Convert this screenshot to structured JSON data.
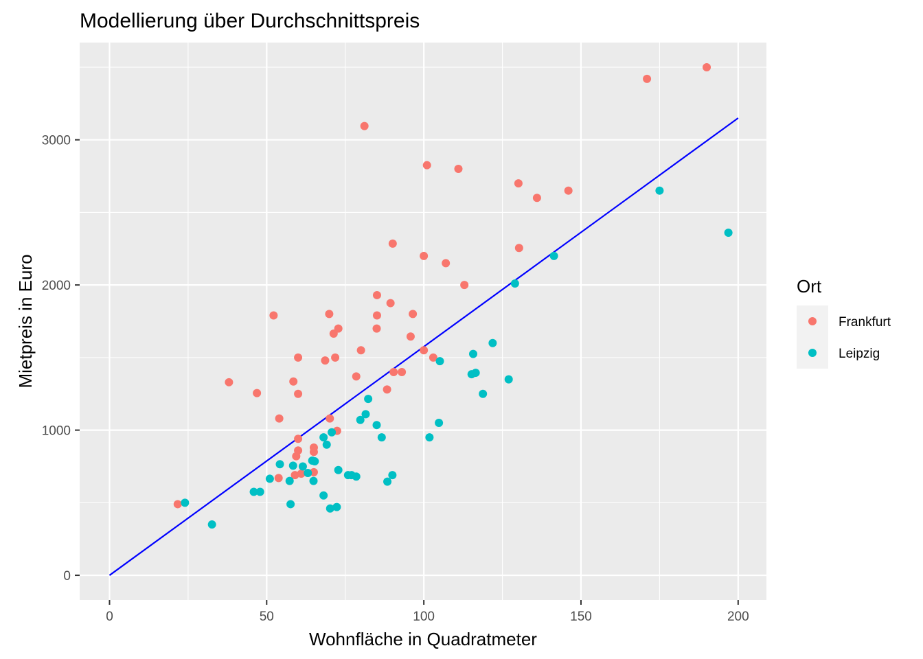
{
  "chart_data": {
    "type": "scatter",
    "title": "Modellierung über Durchschnittspreis",
    "xlabel": "Wohnfläche in Quadratmeter",
    "ylabel": "Mietpreis in Euro",
    "xlim": [
      -9.5,
      209
    ],
    "ylim": [
      -170,
      3670
    ],
    "x_ticks": [
      0,
      50,
      100,
      150,
      200
    ],
    "x_tick_labels": [
      "0",
      "50",
      "100",
      "150",
      "200"
    ],
    "y_ticks": [
      0,
      1000,
      2000,
      3000
    ],
    "y_tick_labels": [
      "0",
      "1000",
      "2000",
      "3000"
    ],
    "grid": true,
    "legend": {
      "title": "Ort",
      "position": "right"
    },
    "series": [
      {
        "name": "Frankfurt",
        "color": "#F8766D",
        "points": [
          [
            21.7,
            490
          ],
          [
            38,
            1330
          ],
          [
            46.9,
            1255
          ],
          [
            52.2,
            1790
          ],
          [
            53.8,
            670
          ],
          [
            54,
            1080
          ],
          [
            58.5,
            1335
          ],
          [
            59,
            690
          ],
          [
            59.4,
            820
          ],
          [
            60,
            940
          ],
          [
            60,
            860
          ],
          [
            60,
            1250
          ],
          [
            60,
            1500
          ],
          [
            61,
            700
          ],
          [
            65,
            710
          ],
          [
            65,
            850
          ],
          [
            65,
            880
          ],
          [
            68.6,
            1480
          ],
          [
            69.9,
            1800
          ],
          [
            70.1,
            1080
          ],
          [
            71.3,
            1665
          ],
          [
            71.8,
            1500
          ],
          [
            72.4,
            995
          ],
          [
            72.8,
            1700
          ],
          [
            78.5,
            1370
          ],
          [
            80,
            1550
          ],
          [
            81.1,
            3095
          ],
          [
            85,
            1700
          ],
          [
            85.1,
            1790
          ],
          [
            85.1,
            1930
          ],
          [
            88.3,
            1280
          ],
          [
            89.4,
            1875
          ],
          [
            90.1,
            2285
          ],
          [
            90.4,
            1400
          ],
          [
            93,
            1400
          ],
          [
            95.8,
            1645
          ],
          [
            96.5,
            1800
          ],
          [
            100,
            2200
          ],
          [
            100,
            1550
          ],
          [
            101,
            2825
          ],
          [
            103,
            1500
          ],
          [
            107,
            2150
          ],
          [
            111,
            2800
          ],
          [
            112.9,
            2000
          ],
          [
            130.1,
            2700
          ],
          [
            130.3,
            2255
          ],
          [
            136,
            2600
          ],
          [
            146,
            2650
          ],
          [
            171,
            3420
          ],
          [
            190,
            3500
          ]
        ]
      },
      {
        "name": "Leipzig",
        "color": "#00BFC4",
        "points": [
          [
            24,
            500
          ],
          [
            32.6,
            350
          ],
          [
            45.9,
            575
          ],
          [
            47.9,
            575
          ],
          [
            51,
            665
          ],
          [
            54.2,
            765
          ],
          [
            57.3,
            650
          ],
          [
            57.6,
            490
          ],
          [
            58.4,
            755
          ],
          [
            61.5,
            750
          ],
          [
            63.1,
            705
          ],
          [
            64.5,
            790
          ],
          [
            64.9,
            650
          ],
          [
            65.3,
            785
          ],
          [
            68.1,
            950
          ],
          [
            68.1,
            550
          ],
          [
            69.1,
            900
          ],
          [
            70.2,
            460
          ],
          [
            70.7,
            985
          ],
          [
            72.3,
            470
          ],
          [
            72.8,
            725
          ],
          [
            75.9,
            690
          ],
          [
            77,
            690
          ],
          [
            78.5,
            680
          ],
          [
            79.8,
            1070
          ],
          [
            81.5,
            1110
          ],
          [
            82.3,
            1215
          ],
          [
            85,
            1035
          ],
          [
            86.6,
            950
          ],
          [
            88.4,
            645
          ],
          [
            90,
            690
          ],
          [
            101.8,
            950
          ],
          [
            104.8,
            1050
          ],
          [
            105.1,
            1475
          ],
          [
            115.2,
            1385
          ],
          [
            115.7,
            1525
          ],
          [
            116.5,
            1395
          ],
          [
            118.8,
            1250
          ],
          [
            121.9,
            1600
          ],
          [
            127,
            1350
          ],
          [
            129,
            2010
          ],
          [
            141.4,
            2200
          ],
          [
            175,
            2650
          ],
          [
            196.9,
            2360
          ]
        ]
      }
    ],
    "fit_line": {
      "color": "#0000FF",
      "from": [
        0,
        0
      ],
      "to": [
        200,
        3150
      ]
    }
  }
}
